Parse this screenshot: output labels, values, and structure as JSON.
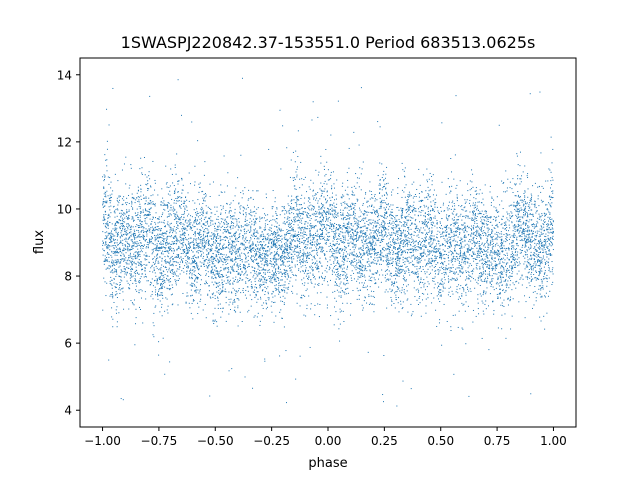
{
  "chart_data": {
    "type": "scatter",
    "title": "1SWASPJ220842.37-153551.0 Period 683513.0625s",
    "xlabel": "phase",
    "ylabel": "flux",
    "xlim": [
      -1.1,
      1.1
    ],
    "ylim": [
      3.5,
      14.5
    ],
    "x_ticks": [
      -1.0,
      -0.75,
      -0.5,
      -0.25,
      0.0,
      0.25,
      0.5,
      0.75,
      1.0
    ],
    "x_tick_labels": [
      "−1.00",
      "−0.75",
      "−0.50",
      "−0.25",
      "0.00",
      "0.25",
      "0.50",
      "0.75",
      "1.00"
    ],
    "y_ticks": [
      4,
      6,
      8,
      10,
      12,
      14
    ],
    "y_tick_labels": [
      "4",
      "6",
      "8",
      "10",
      "12",
      "14"
    ],
    "grid": false,
    "legend": "none",
    "series": [
      {
        "color": "#1f77b4",
        "marker": "point",
        "n_points_approx": 25000,
        "x_range": [
          -1.0,
          1.0
        ],
        "y_typical_range": [
          6.5,
          12.3
        ],
        "y_outlier_range": [
          4.0,
          14.0
        ],
        "profile_x": [
          -1.0,
          -0.95,
          -0.9,
          -0.85,
          -0.8,
          -0.75,
          -0.7,
          -0.65,
          -0.6,
          -0.55,
          -0.5,
          -0.45,
          -0.4,
          -0.35,
          -0.3,
          -0.25,
          -0.2,
          -0.15,
          -0.1,
          -0.05,
          0.0,
          0.05,
          0.1,
          0.15,
          0.2,
          0.25,
          0.3,
          0.35,
          0.4,
          0.45,
          0.5,
          0.55,
          0.6,
          0.65,
          0.7,
          0.75,
          0.8,
          0.85,
          0.9,
          0.95,
          1.0
        ],
        "profile_median": [
          9.8,
          8.6,
          9.2,
          8.8,
          9.5,
          8.4,
          9.0,
          9.4,
          8.5,
          9.3,
          8.3,
          8.8,
          8.6,
          8.9,
          8.5,
          8.7,
          8.4,
          9.4,
          8.9,
          9.2,
          9.6,
          8.7,
          9.4,
          8.8,
          8.9,
          9.5,
          8.6,
          9.3,
          8.7,
          9.4,
          8.4,
          9.1,
          8.6,
          9.2,
          8.5,
          8.8,
          8.6,
          9.5,
          9.0,
          8.6,
          9.9
        ],
        "profile_spread": [
          1.0,
          0.9,
          0.8,
          0.9,
          1.0,
          0.8,
          0.9,
          0.9,
          0.8,
          0.9,
          0.8,
          0.8,
          0.8,
          0.8,
          0.7,
          0.8,
          0.8,
          0.9,
          0.8,
          0.9,
          1.0,
          0.8,
          0.9,
          0.8,
          0.8,
          0.9,
          0.8,
          0.9,
          0.8,
          0.9,
          0.8,
          0.9,
          0.8,
          0.9,
          0.8,
          0.8,
          0.8,
          0.9,
          0.8,
          0.8,
          1.0
        ]
      }
    ]
  }
}
